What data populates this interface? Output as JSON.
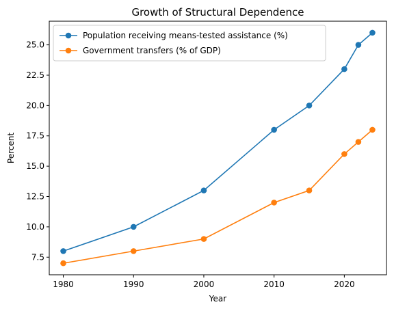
{
  "chart_data": {
    "type": "line",
    "title": "Growth of Structural Dependence",
    "xlabel": "Year",
    "ylabel": "Percent",
    "xlim": [
      1978,
      2026
    ],
    "ylim": [
      6.05,
      26.95
    ],
    "x_ticks": [
      1980,
      1990,
      2000,
      2010,
      2020
    ],
    "y_ticks": [
      7.5,
      10.0,
      12.5,
      15.0,
      17.5,
      20.0,
      22.5,
      25.0
    ],
    "x": [
      1980,
      1990,
      2000,
      2010,
      2015,
      2020,
      2022,
      2024
    ],
    "series": [
      {
        "name": "Population receiving means-tested assistance (%)",
        "color": "#1f77b4",
        "values": [
          8,
          10,
          13,
          18,
          20,
          23,
          25,
          26
        ]
      },
      {
        "name": "Government transfers (% of GDP)",
        "color": "#ff7f0e",
        "values": [
          7,
          8,
          9,
          12,
          13,
          16,
          17,
          18
        ]
      }
    ],
    "grid": false,
    "legend_position": "upper-left"
  }
}
